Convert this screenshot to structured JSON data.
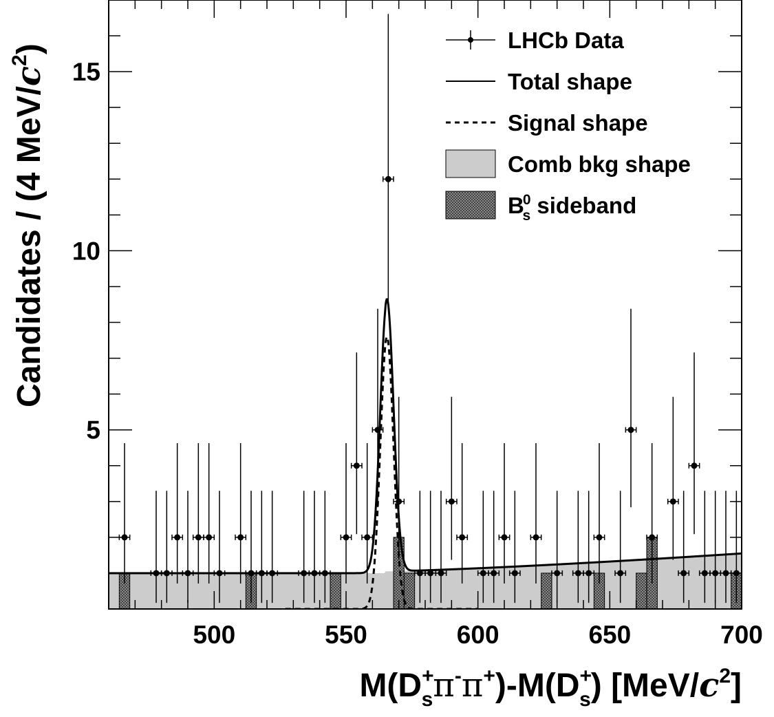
{
  "chart_data": {
    "type": "scatter",
    "xlabel_parts": {
      "main1": "M(D",
      "sup1": "+",
      "sub1": "s",
      "mid": "π",
      "sup2": "-",
      "mid2": "π",
      "sup3": "+",
      "main2": ")-M(D",
      "sup4": "+",
      "sub2": "s",
      "main3": ") [MeV/",
      "italic_c": "c",
      "sup5": "2",
      "close": "]"
    },
    "ylabel_parts": {
      "main": "Candidates / (4 MeV/",
      "italic_c": "c",
      "sup": "2",
      "close": ")"
    },
    "xlim": [
      460,
      700
    ],
    "ylim": [
      0,
      17
    ],
    "x_ticks": [
      {
        "value": 500,
        "label": "500"
      },
      {
        "value": 550,
        "label": "550"
      },
      {
        "value": 600,
        "label": "600"
      },
      {
        "value": 650,
        "label": "650"
      },
      {
        "value": 700,
        "label": "700"
      }
    ],
    "y_ticks": [
      {
        "value": 5,
        "label": "5"
      },
      {
        "value": 10,
        "label": "10"
      },
      {
        "value": 15,
        "label": "15"
      }
    ],
    "legend": {
      "placement": "top-right",
      "entries": [
        {
          "key": "data",
          "label": "LHCb Data"
        },
        {
          "key": "total",
          "label": "Total shape"
        },
        {
          "key": "signal",
          "label": "Signal shape"
        },
        {
          "key": "comb",
          "label": "Comb bkg shape"
        },
        {
          "key": "sideband",
          "label": "B",
          "label_sup": "0",
          "label_sub": "s",
          "label_rest": " sideband"
        }
      ]
    },
    "colors": {
      "comb_fill": "#cccccc",
      "sideband_fill": "#888888",
      "line": "#000000"
    },
    "data_points": [
      {
        "x": 466,
        "y": 2
      },
      {
        "x": 478,
        "y": 1
      },
      {
        "x": 482,
        "y": 1
      },
      {
        "x": 486,
        "y": 2
      },
      {
        "x": 490,
        "y": 1
      },
      {
        "x": 494,
        "y": 2
      },
      {
        "x": 498,
        "y": 2
      },
      {
        "x": 502,
        "y": 1
      },
      {
        "x": 510,
        "y": 2
      },
      {
        "x": 514,
        "y": 1
      },
      {
        "x": 518,
        "y": 1
      },
      {
        "x": 522,
        "y": 1
      },
      {
        "x": 534,
        "y": 1
      },
      {
        "x": 538,
        "y": 1
      },
      {
        "x": 542,
        "y": 1
      },
      {
        "x": 550,
        "y": 2
      },
      {
        "x": 554,
        "y": 4
      },
      {
        "x": 558,
        "y": 2
      },
      {
        "x": 562,
        "y": 5
      },
      {
        "x": 566,
        "y": 12
      },
      {
        "x": 570,
        "y": 3
      },
      {
        "x": 578,
        "y": 1
      },
      {
        "x": 582,
        "y": 1
      },
      {
        "x": 586,
        "y": 1
      },
      {
        "x": 590,
        "y": 3
      },
      {
        "x": 594,
        "y": 2
      },
      {
        "x": 602,
        "y": 1
      },
      {
        "x": 606,
        "y": 1
      },
      {
        "x": 610,
        "y": 2
      },
      {
        "x": 614,
        "y": 1
      },
      {
        "x": 622,
        "y": 2
      },
      {
        "x": 630,
        "y": 1
      },
      {
        "x": 638,
        "y": 1
      },
      {
        "x": 642,
        "y": 1
      },
      {
        "x": 646,
        "y": 2
      },
      {
        "x": 654,
        "y": 1
      },
      {
        "x": 658,
        "y": 5
      },
      {
        "x": 666,
        "y": 2
      },
      {
        "x": 674,
        "y": 3
      },
      {
        "x": 678,
        "y": 1
      },
      {
        "x": 682,
        "y": 4
      },
      {
        "x": 686,
        "y": 1
      },
      {
        "x": 690,
        "y": 1
      },
      {
        "x": 694,
        "y": 1
      },
      {
        "x": 698,
        "y": 1
      }
    ],
    "error_bars": {
      "1": [
        0.83,
        2.3
      ],
      "2": [
        1.29,
        2.63
      ],
      "3": [
        1.63,
        2.92
      ],
      "4": [
        1.91,
        3.16
      ],
      "5": [
        2.16,
        3.38
      ],
      "12": [
        3.46,
        4.61
      ]
    },
    "x_half_width": 2,
    "sideband_bins": [
      {
        "x0": 464,
        "x1": 468,
        "y": 1
      },
      {
        "x0": 512,
        "x1": 516,
        "y": 1
      },
      {
        "x0": 544,
        "x1": 548,
        "y": 1
      },
      {
        "x0": 568,
        "x1": 572,
        "y": 2
      },
      {
        "x0": 572,
        "x1": 576,
        "y": 1
      },
      {
        "x0": 624,
        "x1": 628,
        "y": 1
      },
      {
        "x0": 644,
        "x1": 648,
        "y": 1
      },
      {
        "x0": 660,
        "x1": 664,
        "y": 1
      },
      {
        "x0": 664,
        "x1": 668,
        "y": 2
      },
      {
        "x0": 696,
        "x1": 700,
        "y": 1
      }
    ],
    "comb_bkg": {
      "threshold": 565,
      "flat_level": 1.0,
      "shoulder_level": 1.05,
      "end_level": 1.55
    },
    "signal": {
      "mean": 565.5,
      "sigma": 2.5,
      "peak": 7.6,
      "x_range": [
        527,
        600
      ]
    }
  }
}
